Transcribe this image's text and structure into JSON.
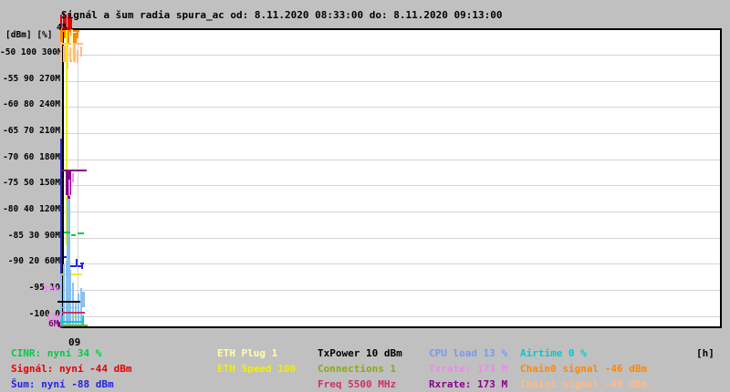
{
  "title": "Signál a šum radia spura_ac od: 8.11.2020 08:33:00 do: 8.11.2020 09:13:00",
  "colors": {
    "bg": "#c0c0c0",
    "plot_bg": "#ffffff",
    "border": "#000000",
    "grid": "#d4d4d4",
    "text": "#000000",
    "cinr": "#00cc44",
    "signal": "#e60000",
    "noise": "#2222e0",
    "eth_plug": "#ffffaa",
    "eth_speed": "#f0f000",
    "txpower": "#000000",
    "connections": "#8aaa11",
    "freq": "#cc3366",
    "cpu": "#7799ee",
    "txrate": "#ee88ee",
    "rxrate": "#880088",
    "airtime": "#00cccc",
    "chain0": "#ff8800",
    "chain1": "#ffbb88",
    "cpu_hist": "#88c0f2"
  },
  "y_axis": {
    "header": "[dBm] [%]",
    "top_marker": "45",
    "rows": [
      "-50 100 300M",
      "-55 90 270M",
      "-60 80 240M",
      "-65 70 210M",
      "-70 60 180M",
      "-75 50 150M",
      "-80 40 120M",
      "-85 30 90M",
      "-90 20 60M",
      "-95 10",
      "-100 0"
    ],
    "colored_markers": [
      {
        "text": "39M",
        "color_key": "txrate",
        "x": 47,
        "y": 312
      },
      {
        "text": "13M",
        "color_key": "txrate",
        "x": 50,
        "y": 343
      },
      {
        "text": "6M",
        "color_key": "rxrate",
        "x": 53,
        "y": 350
      }
    ]
  },
  "x_axis": {
    "tick": "09",
    "unit": "[h]"
  },
  "legend": {
    "items": [
      {
        "label": "CINR: nyní 34 %",
        "color_key": "cinr",
        "col": 0,
        "row": 0
      },
      {
        "label": "Signál: nyní -44 dBm",
        "color_key": "signal",
        "col": 0,
        "row": 1
      },
      {
        "label": "Šum: nyní -88 dBm",
        "color_key": "noise",
        "col": 0,
        "row": 2
      },
      {
        "label": "ETH Plug 1",
        "color_key": "eth_plug",
        "col": 1,
        "row": 0
      },
      {
        "label": "ETH Speed 100",
        "color_key": "eth_speed",
        "col": 1,
        "row": 1
      },
      {
        "label": "TxPower 10 dBm",
        "color_key": "txpower",
        "col": 2,
        "row": 0
      },
      {
        "label": "Connections 1",
        "color_key": "connections",
        "col": 2,
        "row": 1
      },
      {
        "label": "Freq 5500 MHz",
        "color_key": "freq",
        "col": 2,
        "row": 2
      },
      {
        "label": "CPU load 13 %",
        "color_key": "cpu",
        "col": 3,
        "row": 0
      },
      {
        "label": "Txrate: 173 M",
        "color_key": "txrate",
        "col": 3,
        "row": 1
      },
      {
        "label": "Rxrate: 173 M",
        "color_key": "rxrate",
        "col": 3,
        "row": 2
      },
      {
        "label": "Airtime 0 %",
        "color_key": "airtime",
        "col": 4,
        "row": 0
      },
      {
        "label": "Chain0 signal -46 dBm",
        "color_key": "chain0",
        "col": 4,
        "row": 1
      },
      {
        "label": "Chain1 signal -49 dBm",
        "color_key": "chain1",
        "col": 4,
        "row": 2
      }
    ]
  },
  "chart_data": {
    "type": "line",
    "title": "Signál a šum radia spura_ac",
    "x_start": "8.11.2020 08:33:00",
    "x_end": "8.11.2020 09:13:00",
    "xlabel": "[h]",
    "x_tick_labels": [
      "09"
    ],
    "axes": {
      "dbm_range": [
        -100,
        -45
      ],
      "percent_range": [
        0,
        110
      ],
      "rate_mbit_range": [
        0,
        330
      ]
    },
    "grid": true,
    "note": "Series data present only in a short burst at the start (~08:33–08:36); remainder of the 40-minute window is empty plot.",
    "series": [
      {
        "name": "CINR",
        "unit": "%",
        "current": 34,
        "approx_burst_range": [
          32,
          36
        ]
      },
      {
        "name": "Signál",
        "unit": "dBm",
        "current": -44,
        "approx_burst_range": [
          -48,
          -43
        ]
      },
      {
        "name": "Šum",
        "unit": "dBm",
        "current": -88,
        "approx_burst_range": [
          -90,
          -66
        ]
      },
      {
        "name": "ETH Plug",
        "unit": "",
        "current": 1
      },
      {
        "name": "ETH Speed",
        "unit": "",
        "current": 100
      },
      {
        "name": "TxPower",
        "unit": "dBm",
        "current": 10
      },
      {
        "name": "Connections",
        "unit": "",
        "current": 1
      },
      {
        "name": "Freq",
        "unit": "MHz",
        "current": 5500
      },
      {
        "name": "CPU load",
        "unit": "%",
        "current": 13,
        "approx_burst_range": [
          0,
          25
        ]
      },
      {
        "name": "Txrate",
        "unit": "Mbit",
        "current": 173,
        "axis_marker": "39M"
      },
      {
        "name": "Rxrate",
        "unit": "Mbit",
        "current": 173,
        "axis_markers": [
          "13M",
          "6M"
        ]
      },
      {
        "name": "Airtime",
        "unit": "%",
        "current": 0
      },
      {
        "name": "Chain0 signal",
        "unit": "dBm",
        "current": -46,
        "approx_burst_range": [
          -50,
          -45
        ]
      },
      {
        "name": "Chain1 signal",
        "unit": "dBm",
        "current": -49,
        "approx_burst_range": [
          -53,
          -47
        ]
      }
    ],
    "render_marks": [
      [
        66,
        16,
        2,
        14,
        "signal"
      ],
      [
        69,
        14,
        2,
        17,
        "signal"
      ],
      [
        71,
        18,
        2,
        13,
        "signal"
      ],
      [
        74,
        15,
        3,
        16,
        "signal"
      ],
      [
        77,
        20,
        2,
        11,
        "signal"
      ],
      [
        68,
        30,
        10,
        3,
        "signal"
      ],
      [
        67,
        33,
        20,
        2,
        "chain0"
      ],
      [
        66,
        32,
        3,
        16,
        "chain0"
      ],
      [
        70,
        33,
        2,
        9,
        "chain0"
      ],
      [
        73,
        34,
        3,
        15,
        "chain0"
      ],
      [
        77,
        32,
        3,
        7,
        "chain0"
      ],
      [
        80,
        36,
        4,
        13,
        "chain0"
      ],
      [
        84,
        33,
        2,
        9,
        "chain0"
      ],
      [
        67,
        47,
        24,
        2,
        "chain1"
      ],
      [
        66,
        46,
        2,
        22,
        "chain1"
      ],
      [
        69,
        50,
        3,
        18,
        "chain1"
      ],
      [
        73,
        48,
        2,
        28,
        "chain1"
      ],
      [
        76,
        52,
        3,
        16,
        "chain1"
      ],
      [
        80,
        47,
        3,
        21,
        "chain1"
      ],
      [
        84,
        55,
        2,
        14,
        "chain1"
      ],
      [
        88,
        51,
        2,
        11,
        "chain1"
      ],
      [
        72,
        33,
        2,
        236,
        "eth_speed"
      ],
      [
        68,
        300,
        22,
        2,
        "eth_speed"
      ],
      [
        68,
        347,
        24,
        2,
        "eth_speed"
      ],
      [
        78,
        33,
        2,
        32,
        "eth_plug"
      ],
      [
        66,
        152,
        2,
        208,
        "noise"
      ],
      [
        70,
        281,
        4,
        2,
        "noise"
      ],
      [
        73,
        282,
        2,
        10,
        "noise"
      ],
      [
        74,
        291,
        10,
        2,
        "noise"
      ],
      [
        83,
        284,
        2,
        8,
        "noise"
      ],
      [
        85,
        291,
        4,
        2,
        "noise"
      ],
      [
        88,
        288,
        4,
        2,
        "noise"
      ],
      [
        89,
        288,
        2,
        7,
        "noise"
      ],
      [
        68,
        186,
        27,
        2,
        "rxrate"
      ],
      [
        72,
        188,
        6,
        26,
        "rxrate"
      ],
      [
        74,
        214,
        3,
        9,
        "rxrate"
      ],
      [
        64,
        353,
        5,
        6,
        "rxrate"
      ],
      [
        75,
        197,
        2,
        18,
        "txrate"
      ],
      [
        79,
        190,
        2,
        10,
        "txrate"
      ],
      [
        73,
        218,
        4,
        140,
        "cpu_hist"
      ],
      [
        66,
        300,
        2,
        58,
        "cpu_hist"
      ],
      [
        69,
        290,
        2,
        68,
        "cpu_hist"
      ],
      [
        72,
        286,
        3,
        72,
        "cpu_hist"
      ],
      [
        76,
        296,
        2,
        62,
        "cpu_hist"
      ],
      [
        79,
        310,
        2,
        48,
        "cpu_hist"
      ],
      [
        82,
        330,
        2,
        28,
        "cpu_hist"
      ],
      [
        85,
        322,
        2,
        36,
        "cpu_hist"
      ],
      [
        88,
        316,
        2,
        42,
        "cpu_hist"
      ],
      [
        90,
        320,
        3,
        17,
        "cpu_hist"
      ],
      [
        68,
        337,
        18,
        1,
        "cpu_hist"
      ],
      [
        70,
        254,
        7,
        2,
        "cinr"
      ],
      [
        78,
        257,
        5,
        2,
        "cinr"
      ],
      [
        85,
        255,
        7,
        2,
        "cinr"
      ],
      [
        63,
        330,
        25,
        2,
        "txpower"
      ],
      [
        68,
        342,
        25,
        2,
        "freq"
      ],
      [
        66,
        352,
        26,
        2,
        "airtime"
      ],
      [
        67,
        346,
        2,
        11,
        "airtime"
      ],
      [
        90,
        346,
        2,
        11,
        "airtime"
      ],
      [
        66,
        356,
        30,
        2,
        "connections"
      ]
    ]
  }
}
